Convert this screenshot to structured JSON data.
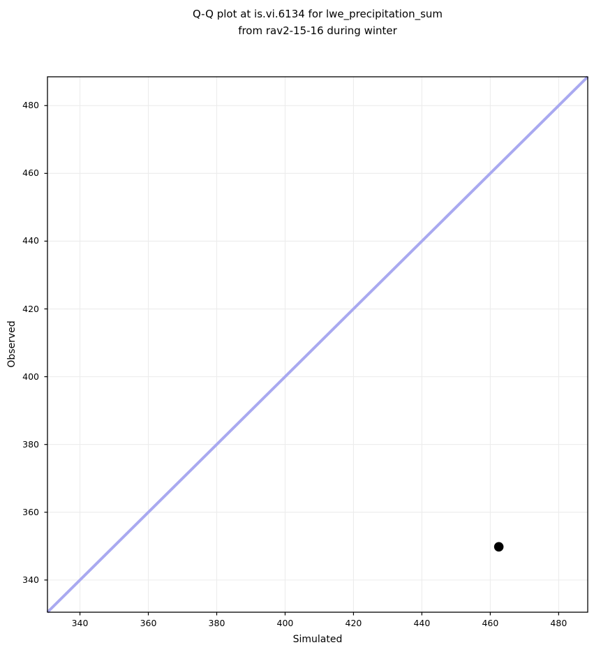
{
  "chart_data": {
    "type": "scatter",
    "title_lines": [
      "Q-Q plot at is.vi.6134 for lwe_precipitation_sum",
      "from rav2-15-16 during winter"
    ],
    "title": "Q-Q plot at is.vi.6134 for lwe_precipitation_sum from rav2-15-16 during winter",
    "xlabel": "Simulated",
    "ylabel": "Observed",
    "xlim": [
      330.5,
      488.5
    ],
    "ylim": [
      330.5,
      488.5
    ],
    "x_ticks": [
      340,
      360,
      380,
      400,
      420,
      440,
      460,
      480
    ],
    "y_ticks": [
      340,
      360,
      380,
      400,
      420,
      440,
      460,
      480
    ],
    "grid": true,
    "legend": false,
    "points": [
      {
        "x": 462.5,
        "y": 349.8
      }
    ],
    "identity_line": {
      "from": 330.5,
      "to": 488.5,
      "color": "#a9a9f0",
      "width": 4
    },
    "marker_color": "#000000",
    "marker_radius": 6.8,
    "grid_color": "#ececec",
    "spine_color": "#000000",
    "background_color": "#ffffff"
  }
}
